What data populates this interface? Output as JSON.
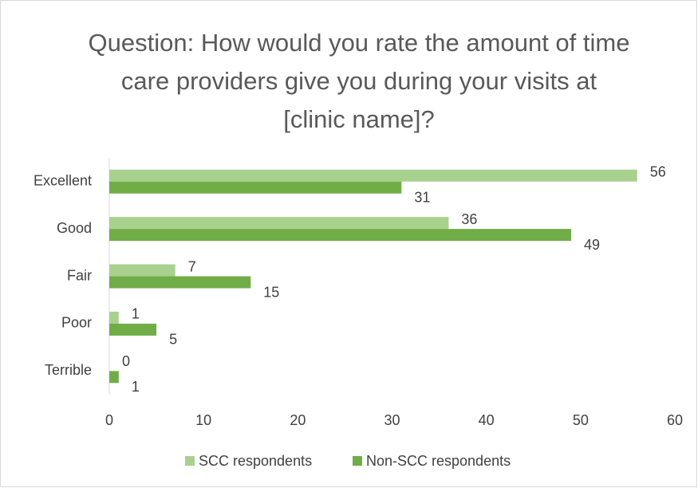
{
  "chart_data": {
    "type": "hbar",
    "title": "Question: How would you rate the amount of time care providers give you during your visits at [clinic name]?",
    "categories": [
      "Excellent",
      "Good",
      "Fair",
      "Poor",
      "Terrible"
    ],
    "series": [
      {
        "name": "SCC respondents",
        "color": "#a9d18e",
        "values": [
          56,
          36,
          7,
          1,
          0
        ]
      },
      {
        "name": "Non-SCC respondents",
        "color": "#70ad47",
        "values": [
          31,
          49,
          15,
          5,
          1
        ]
      }
    ],
    "xlim": [
      0,
      60
    ],
    "xticks": [
      0,
      10,
      20,
      30,
      40,
      50,
      60
    ],
    "legend": "bottom"
  }
}
